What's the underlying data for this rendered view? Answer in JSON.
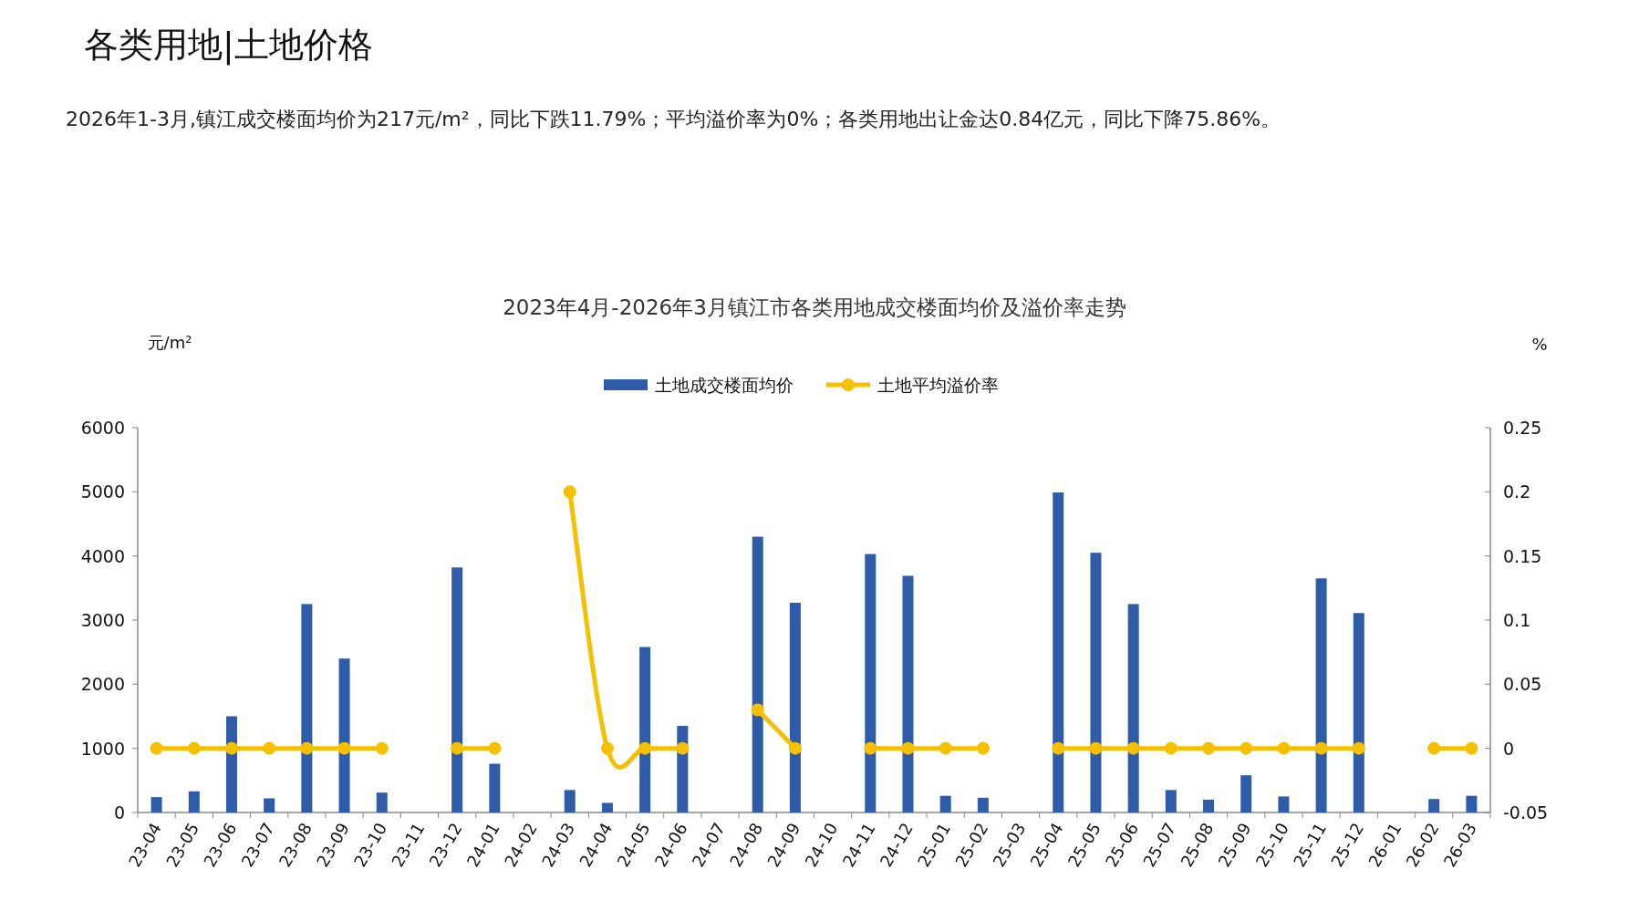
{
  "chart_data": {
    "type": "bar",
    "title": "各类用地|土地价格",
    "subtitle": "2026年1-3月,镇江成交楼面均价为217元/m²，同比下跌11.79%；平均溢价率为0%；各类用地出让金达0.84亿元，同比下降75.86%。",
    "annotations": [
      "2023年4月-2026年3月镇江市各类用地成交楼面均价及溢价率走势"
    ],
    "ylabel": "元/m²",
    "y2label": "%",
    "categories": [
      "23-04",
      "23-05",
      "23-06",
      "23-07",
      "23-08",
      "23-09",
      "23-10",
      "23-11",
      "23-12",
      "24-01",
      "24-02",
      "24-03",
      "24-04",
      "24-05",
      "24-06",
      "24-07",
      "24-08",
      "24-09",
      "24-10",
      "24-11",
      "24-12",
      "25-01",
      "25-02",
      "25-03",
      "25-04",
      "25-05",
      "25-06",
      "25-07",
      "25-08",
      "25-09",
      "25-10",
      "25-11",
      "25-12",
      "26-01",
      "26-02",
      "26-03"
    ],
    "series": [
      {
        "name": "土地成交楼面均价",
        "color": "#2e5ca8",
        "values": [
          240,
          330,
          1500,
          220,
          3250,
          2400,
          310,
          null,
          3820,
          760,
          null,
          350,
          150,
          2580,
          1350,
          null,
          4300,
          3270,
          null,
          4030,
          3690,
          260,
          230,
          null,
          4990,
          4050,
          3250,
          350,
          200,
          580,
          250,
          3650,
          3110,
          null,
          210,
          260
        ]
      },
      {
        "name": "土地平均溢价率",
        "type": "line",
        "axis": "y2",
        "color": "#f5c000",
        "values": [
          0,
          0,
          0,
          0,
          0,
          0,
          0,
          null,
          0,
          0,
          null,
          0.2,
          0,
          0,
          0,
          null,
          0.03,
          0,
          null,
          0,
          0,
          0,
          0,
          null,
          0,
          0,
          0,
          0,
          0,
          0,
          0,
          0,
          0,
          null,
          0,
          0
        ]
      }
    ],
    "ylim": [
      0,
      6000
    ],
    "yticks": [
      0,
      1000,
      2000,
      3000,
      4000,
      5000,
      6000
    ],
    "y2lim": [
      -0.05,
      0.25
    ],
    "y2ticks": [
      -0.05,
      0,
      0.05,
      0.1,
      0.15,
      0.2,
      0.25
    ],
    "grid": false,
    "legend": "top",
    "marker": "circle"
  }
}
